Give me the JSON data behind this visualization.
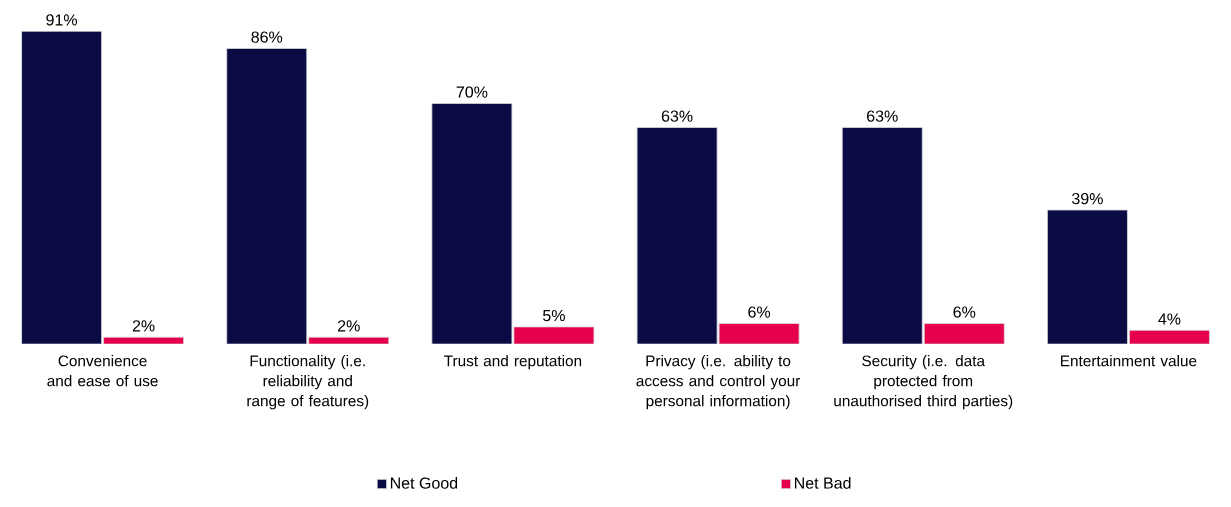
{
  "chart_data": {
    "type": "bar",
    "categories": [
      "Convenience and ease of use",
      "Functionality (i.e. reliability and range of features)",
      "Trust and reputation",
      "Privacy (i.e. ability to access and control your personal information)",
      "Security (i.e. data protected from unauthorised third parties)",
      "Entertainment value"
    ],
    "series": [
      {
        "name": "Net Good",
        "color": "#0a0a45",
        "values": [
          91,
          86,
          70,
          63,
          63,
          39
        ],
        "value_labels": [
          "91%",
          "86%",
          "70%",
          "63%",
          "63%",
          "39%"
        ]
      },
      {
        "name": "Net Bad",
        "color": "#e6004c",
        "values": [
          2,
          2,
          5,
          6,
          6,
          4
        ],
        "value_labels": [
          "2%",
          "2%",
          "5%",
          "6%",
          "6%",
          "4%"
        ]
      }
    ],
    "legend": "bottom"
  }
}
